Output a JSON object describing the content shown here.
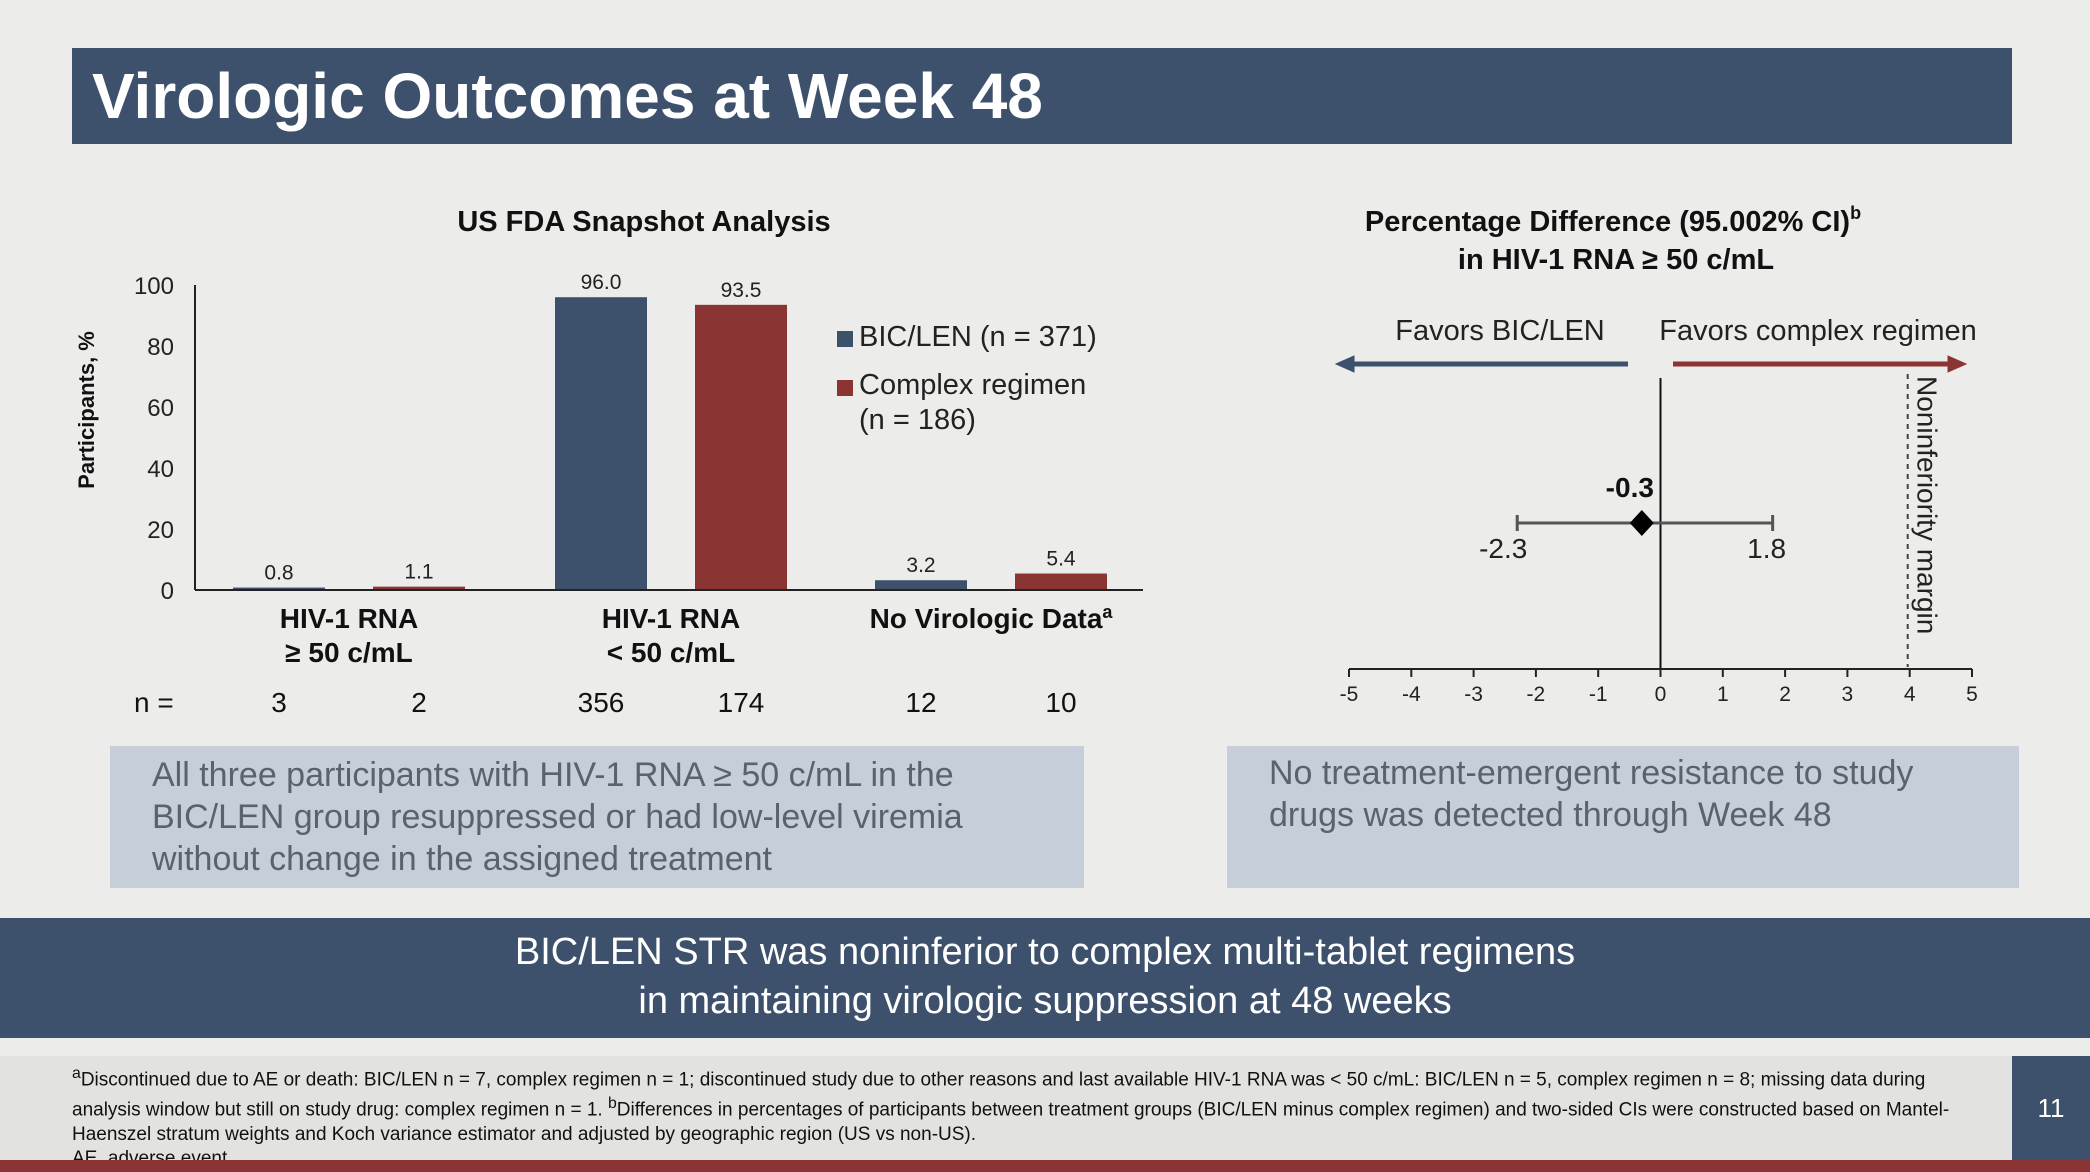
{
  "title": "Virologic Outcomes at Week 48",
  "colors": {
    "bic_len": "#3d516c",
    "complex": "#8b3434",
    "title_bar": "#3d516c",
    "note_box": "#c6ced9"
  },
  "left_chart_title": "US FDA Snapshot Analysis",
  "right_chart_title_line1": "Percentage Difference (95.002% CI)",
  "right_chart_title_sup": "b",
  "right_chart_title_line2": "in HIV-1 RNA ≥ 50 c/mL",
  "chart_data": [
    {
      "type": "bar",
      "title": "US FDA Snapshot Analysis",
      "ylabel": "Participants, %",
      "xlabel": "",
      "ylim": [
        0,
        100
      ],
      "yticks": [
        "0",
        "20",
        "40",
        "60",
        "80",
        "100"
      ],
      "categories": [
        {
          "line1": "HIV-1 RNA",
          "line2": "≥ 50 c/mL",
          "sup": ""
        },
        {
          "line1": "HIV-1 RNA",
          "line2": "< 50 c/mL",
          "sup": ""
        },
        {
          "line1": "No Virologic Data",
          "line2": "",
          "sup": "a"
        }
      ],
      "series": [
        {
          "name": "BIC/LEN (n = 371)",
          "values": [
            0.8,
            96.0,
            3.2
          ],
          "labels": [
            "0.8",
            "96.0",
            "3.2"
          ],
          "n": [
            "3",
            "356",
            "12"
          ]
        },
        {
          "name": "Complex regimen (n = 186)",
          "values": [
            1.1,
            93.5,
            5.4
          ],
          "labels": [
            "1.1",
            "93.5",
            "5.4"
          ],
          "n": [
            "2",
            "174",
            "10"
          ]
        }
      ],
      "legend": [
        {
          "line1": "BIC/LEN (n = 371)",
          "line2": ""
        },
        {
          "line1": "Complex regimen",
          "line2": "(n = 186)"
        }
      ],
      "n_label": "n ="
    },
    {
      "type": "scatter",
      "title": "Percentage Difference (95.002% CI) in HIV-1 RNA ≥ 50 c/mL",
      "xlim": [
        -5,
        5
      ],
      "xticks": [
        "-5",
        "-4",
        "-3",
        "-2",
        "-1",
        "0",
        "1",
        "2",
        "3",
        "4",
        "5"
      ],
      "point": -0.3,
      "ci": [
        -2.3,
        1.8
      ],
      "point_label": "-0.3",
      "ci_low_label": "-2.3",
      "ci_high_label": "1.8",
      "margin": 4,
      "margin_label": "Noninferiority margin",
      "favors_left": "Favors BIC/LEN",
      "favors_right": "Favors complex regimen"
    }
  ],
  "notes": {
    "left": "All three participants with HIV-1 RNA ≥ 50 c/mL in the BIC/LEN group resuppressed or had low-level viremia without change in the assigned treatment",
    "right": "No treatment-emergent resistance to study drugs was detected through Week 48"
  },
  "conclusion": {
    "line1": "BIC/LEN STR was noninferior to complex multi-tablet regimens",
    "line2": "in maintaining virologic suppression at 48 weeks"
  },
  "footnote": {
    "sup_a": "a",
    "a": "Discontinued due to AE or death: BIC/LEN n = 7, complex regimen n = 1; discontinued study due to other reasons and last available HIV-1 RNA was < 50 c/mL: BIC/LEN n = 5, complex regimen n = 8; missing data during analysis window but still on study drug: complex regimen n = 1. ",
    "sup_b": "b",
    "b": "Differences in percentages of participants between treatment groups (BIC/LEN minus complex regimen) and two-sided CIs were constructed based on Mantel-Haenszel stratum weights and Koch variance estimator and adjusted by geographic region (US vs non-US).",
    "abbr": "AE, adverse event."
  },
  "page_number": "11"
}
